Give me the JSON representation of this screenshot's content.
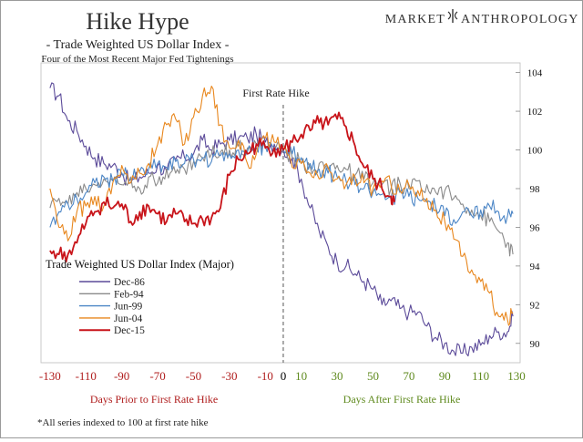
{
  "header": {
    "title": "Hike Hype",
    "subtitle": "- Trade Weighted US Dollar Index -",
    "subtitle2": "Four of the Most Recent Major Fed Tightenings"
  },
  "brand": {
    "left": "MARKET",
    "right": "ANTHROPOLOGY"
  },
  "footnote": "*All series indexed to 100 at first rate hike",
  "chart_data": {
    "type": "line",
    "annotation": "First Rate Hike",
    "legend_title": "Trade Weighted US Dollar Index (Major)",
    "legend_position": "left-middle",
    "left_region_label": "Days Prior to First Rate Hike",
    "right_region_label": "Days After First Rate Hike",
    "xlim": [
      -135,
      132
    ],
    "ylim": [
      89,
      104.5
    ],
    "x_ticks": [
      "-130",
      "-110",
      "-90",
      "-70",
      "-50",
      "-30",
      "-10",
      "0",
      "10",
      "30",
      "50",
      "70",
      "90",
      "110",
      "130"
    ],
    "y_ticks": [
      "90",
      "92",
      "94",
      "96",
      "98",
      "100",
      "102",
      "104"
    ],
    "colors": {
      "negative_ticks": "#b01d1d",
      "positive_ticks": "#5f8a1e",
      "zero_tick": "#000000"
    },
    "series": [
      {
        "name": "Dec-86",
        "color": "#5b4a99",
        "x": [
          -130,
          -125,
          -120,
          -115,
          -110,
          -105,
          -100,
          -95,
          -90,
          -85,
          -80,
          -75,
          -70,
          -65,
          -60,
          -55,
          -50,
          -45,
          -40,
          -35,
          -30,
          -25,
          -20,
          -15,
          -10,
          -5,
          0,
          5,
          10,
          15,
          20,
          25,
          30,
          35,
          40,
          45,
          50,
          55,
          60,
          65,
          70,
          75,
          80,
          85,
          90,
          95,
          100,
          105,
          110,
          115,
          120,
          125,
          128
        ],
        "values": [
          103.2,
          102.8,
          101.5,
          101.0,
          100.2,
          99.6,
          99.3,
          99.2,
          98.8,
          98.3,
          98.6,
          98.8,
          99.2,
          98.9,
          99.5,
          99.6,
          99.8,
          100.5,
          100.0,
          100.3,
          100.5,
          100.6,
          100.6,
          100.8,
          100.4,
          100.3,
          100.0,
          99.6,
          98.5,
          97.0,
          95.8,
          95.0,
          94.2,
          94.0,
          93.6,
          93.2,
          92.8,
          92.0,
          92.2,
          91.8,
          91.6,
          91.6,
          90.9,
          90.3,
          90.0,
          89.6,
          89.5,
          89.8,
          89.9,
          90.4,
          90.6,
          90.6,
          91.4
        ]
      },
      {
        "name": "Feb-94",
        "color": "#8a8a8a",
        "x": [
          -130,
          -125,
          -120,
          -115,
          -110,
          -105,
          -100,
          -95,
          -90,
          -85,
          -80,
          -75,
          -70,
          -65,
          -60,
          -55,
          -50,
          -45,
          -40,
          -35,
          -30,
          -25,
          -20,
          -15,
          -10,
          -5,
          0,
          5,
          10,
          15,
          20,
          25,
          30,
          35,
          40,
          45,
          50,
          55,
          60,
          65,
          70,
          75,
          80,
          85,
          90,
          95,
          100,
          105,
          110,
          115,
          120,
          125,
          128
        ],
        "values": [
          97.0,
          97.5,
          97.2,
          97.8,
          98.0,
          98.2,
          98.5,
          98.4,
          98.2,
          98.6,
          98.0,
          98.6,
          98.3,
          99.0,
          98.8,
          99.0,
          99.4,
          99.6,
          99.8,
          99.9,
          100.0,
          100.2,
          100.1,
          100.3,
          100.2,
          100.0,
          100.0,
          99.6,
          99.3,
          99.1,
          99.3,
          99.0,
          99.2,
          99.0,
          98.7,
          98.5,
          98.3,
          98.2,
          98.0,
          98.3,
          98.0,
          98.4,
          98.2,
          97.8,
          97.9,
          97.5,
          97.2,
          96.9,
          96.6,
          96.3,
          95.8,
          95.2,
          94.6
        ]
      },
      {
        "name": "Jun-99",
        "color": "#4c86c6",
        "x": [
          -130,
          -125,
          -120,
          -115,
          -110,
          -105,
          -100,
          -95,
          -90,
          -85,
          -80,
          -75,
          -70,
          -65,
          -60,
          -55,
          -50,
          -45,
          -40,
          -35,
          -30,
          -25,
          -20,
          -15,
          -10,
          -5,
          0,
          5,
          10,
          15,
          20,
          25,
          30,
          35,
          40,
          45,
          50,
          55,
          60,
          65,
          70,
          75,
          80,
          85,
          90,
          95,
          100,
          105,
          110,
          115,
          120,
          125,
          128
        ],
        "values": [
          96.0,
          96.8,
          97.2,
          97.5,
          97.8,
          98.3,
          98.6,
          98.4,
          98.8,
          98.5,
          98.9,
          99.0,
          99.3,
          99.1,
          99.4,
          99.3,
          99.5,
          99.6,
          99.4,
          99.7,
          99.8,
          100.0,
          99.9,
          100.1,
          100.2,
          100.1,
          100.0,
          99.8,
          99.6,
          99.3,
          99.0,
          98.8,
          98.6,
          98.4,
          98.2,
          98.0,
          97.8,
          97.7,
          97.5,
          97.8,
          97.6,
          97.5,
          97.3,
          97.0,
          96.6,
          96.4,
          96.8,
          96.6,
          96.9,
          97.1,
          96.8,
          96.6,
          96.7
        ]
      },
      {
        "name": "Jun-04",
        "color": "#e8871e",
        "x": [
          -130,
          -125,
          -120,
          -115,
          -110,
          -105,
          -100,
          -95,
          -90,
          -85,
          -80,
          -75,
          -70,
          -65,
          -60,
          -55,
          -50,
          -45,
          -40,
          -35,
          -30,
          -25,
          -20,
          -15,
          -10,
          -5,
          0,
          5,
          10,
          15,
          20,
          25,
          30,
          35,
          40,
          45,
          50,
          55,
          60,
          65,
          70,
          75,
          80,
          85,
          90,
          95,
          100,
          105,
          110,
          115,
          120,
          125,
          128
        ],
        "values": [
          98.0,
          96.0,
          95.3,
          96.8,
          97.1,
          97.6,
          97.1,
          98.3,
          99.2,
          98.3,
          98.8,
          99.3,
          100.3,
          101.3,
          101.6,
          100.3,
          101.7,
          102.8,
          103.3,
          101.3,
          100.1,
          100.5,
          99.3,
          99.8,
          100.6,
          100.4,
          100.0,
          99.1,
          99.3,
          98.8,
          98.5,
          99.1,
          98.5,
          98.2,
          98.6,
          98.3,
          98.0,
          98.4,
          98.2,
          97.9,
          98.2,
          97.9,
          97.5,
          96.9,
          96.3,
          95.4,
          94.5,
          93.8,
          93.2,
          92.6,
          91.4,
          91.2,
          91.6
        ]
      },
      {
        "name": "Dec-15",
        "color": "#c8141a",
        "x": [
          -130,
          -125,
          -120,
          -115,
          -110,
          -105,
          -100,
          -95,
          -90,
          -85,
          -80,
          -75,
          -70,
          -65,
          -60,
          -55,
          -50,
          -45,
          -40,
          -35,
          -30,
          -25,
          -20,
          -15,
          -10,
          -5,
          0,
          5,
          10,
          15,
          20,
          25,
          30,
          35,
          40,
          45,
          50,
          55,
          60,
          62
        ],
        "values": [
          94.8,
          94.6,
          94.6,
          95.2,
          96.2,
          96.8,
          97.3,
          97.0,
          97.2,
          96.3,
          96.8,
          97.1,
          96.7,
          96.3,
          96.7,
          96.3,
          96.2,
          96.4,
          96.5,
          97.0,
          98.7,
          99.5,
          99.8,
          100.3,
          100.1,
          100.1,
          100.0,
          100.4,
          100.8,
          101.0,
          101.4,
          101.3,
          101.6,
          101.2,
          100.2,
          99.1,
          98.5,
          98.0,
          97.6,
          97.3
        ]
      }
    ]
  }
}
